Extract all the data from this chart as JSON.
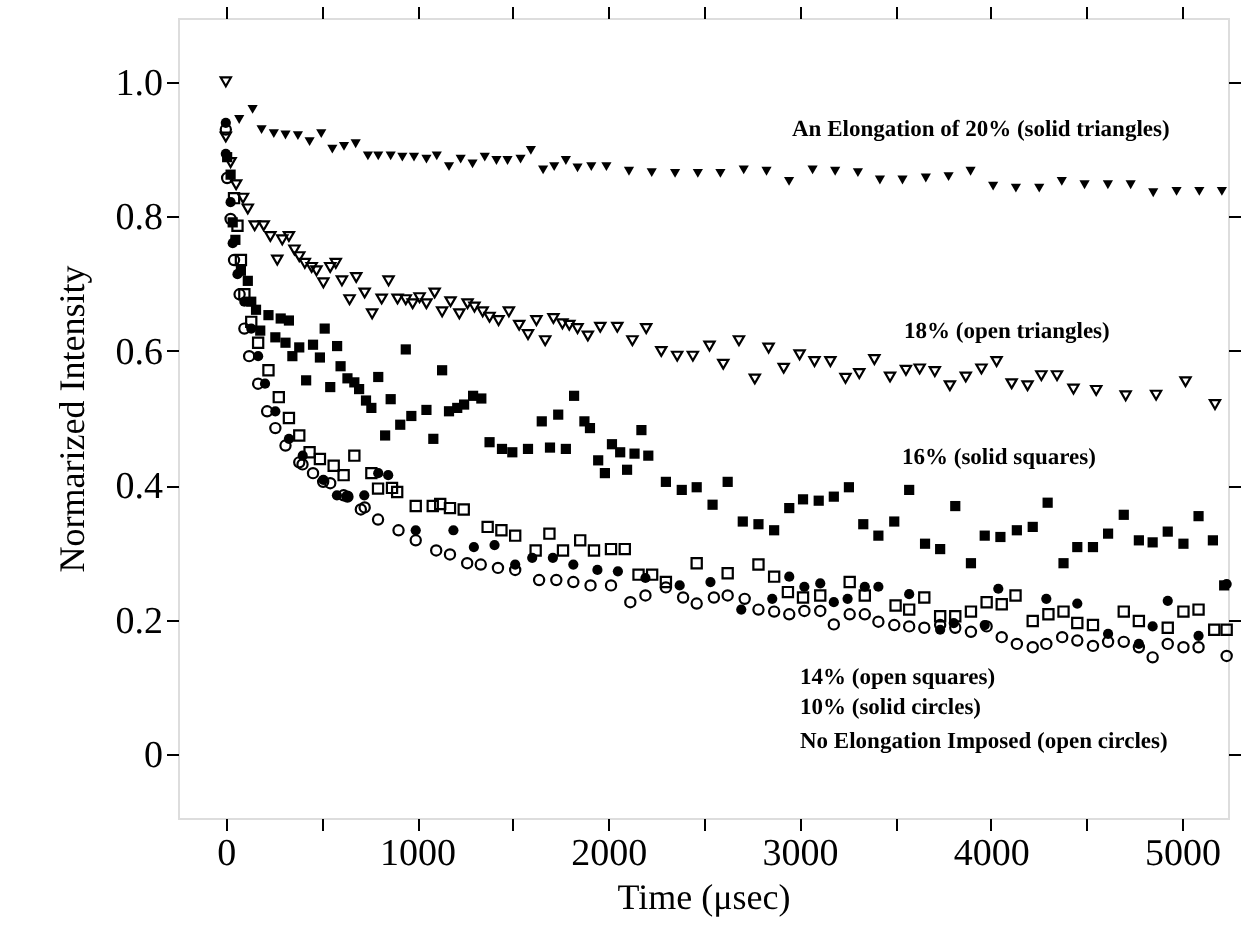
{
  "chart_data": {
    "type": "scatter",
    "xlabel": "Time  (μsec)",
    "ylabel": "Normarized  Intensity",
    "xlim": [
      -250,
      5240
    ],
    "ylim": [
      -0.095,
      1.095
    ],
    "xticks": [
      0,
      {
        "value": 500,
        "label": null
      },
      1000,
      {
        "value": 1500,
        "label": null
      },
      2000,
      {
        "value": 2500,
        "label": null
      },
      3000,
      {
        "value": 3500,
        "label": null
      },
      4000,
      {
        "value": 4500,
        "label": null
      },
      5000
    ],
    "yticks": [
      0,
      0.2,
      0.4,
      0.6,
      0.8,
      {
        "value": 1,
        "label": "1.0"
      }
    ],
    "grid": false,
    "annotations": [
      "An Elongation of 20% (solid triangles)",
      "18% (open triangles)",
      "16% (solid squares)",
      "14% (open squares)",
      "10% (solid circles)",
      "No Elongation Imposed (open circles)"
    ],
    "series": [
      {
        "color": "#000000",
        "marker": "triangle",
        "x": [
          70,
          140,
          187,
          251,
          312,
          377,
          438,
          499,
          557,
          618,
          679,
          743,
          797,
          862,
          923,
          984,
          1049,
          1103,
          1167,
          1228,
          1290,
          1354,
          1415,
          1473,
          1541,
          1595,
          1659,
          1717,
          1778,
          1839,
          1911,
          1990,
          2108,
          2227,
          2349,
          2468,
          2586,
          2708,
          2827,
          2945,
          3068,
          3186,
          3305,
          3420,
          3538,
          3660,
          3779,
          3894,
          4012,
          4131,
          4253,
          4371,
          4490,
          4612,
          4731,
          4849,
          4971,
          5090,
          5208
        ],
        "values": [
          0.944,
          0.959,
          0.929,
          0.923,
          0.921,
          0.92,
          0.911,
          0.923,
          0.9,
          0.904,
          0.908,
          0.89,
          0.89,
          0.89,
          0.888,
          0.888,
          0.885,
          0.89,
          0.874,
          0.885,
          0.878,
          0.888,
          0.883,
          0.883,
          0.885,
          0.898,
          0.869,
          0.874,
          0.883,
          0.872,
          0.874,
          0.874,
          0.867,
          0.865,
          0.864,
          0.864,
          0.864,
          0.869,
          0.867,
          0.852,
          0.869,
          0.867,
          0.865,
          0.854,
          0.854,
          0.857,
          0.859,
          0.867,
          0.845,
          0.842,
          0.842,
          0.852,
          0.847,
          0.847,
          0.847,
          0.835,
          0.837,
          0.837,
          0.837
        ]
      },
      {
        "color": "#000000",
        "marker": "triangle",
        "x": [
          0,
          0,
          25,
          54,
          90,
          115,
          151,
          198,
          233,
          269,
          295,
          330,
          359,
          384,
          413,
          449,
          474,
          510,
          546,
          575,
          607,
          647,
          682,
          726,
          765,
          815,
          851,
          898,
          941,
          977,
          1013,
          1049,
          1092,
          1131,
          1175,
          1221,
          1264,
          1300,
          1343,
          1379,
          1426,
          1480,
          1534,
          1580,
          1624,
          1670,
          1713,
          1760,
          1796,
          1839,
          1893,
          1958,
          2047,
          2126,
          2198,
          2277,
          2360,
          2442,
          2529,
          2601,
          2683,
          2766,
          2838,
          2917,
          3000,
          3078,
          3161,
          3240,
          3312,
          3391,
          3473,
          3556,
          3628,
          3707,
          3786,
          3869,
          3951,
          4030,
          4109,
          4192,
          4264,
          4346,
          4432,
          4551,
          4705,
          4864,
          5018,
          5172
        ],
        "values": [
          1.0,
          0.918,
          0.88,
          0.847,
          0.827,
          0.811,
          0.786,
          0.786,
          0.77,
          0.735,
          0.765,
          0.77,
          0.75,
          0.74,
          0.73,
          0.724,
          0.719,
          0.701,
          0.724,
          0.73,
          0.704,
          0.676,
          0.709,
          0.686,
          0.655,
          0.677,
          0.704,
          0.677,
          0.676,
          0.67,
          0.679,
          0.67,
          0.686,
          0.658,
          0.673,
          0.655,
          0.67,
          0.665,
          0.658,
          0.65,
          0.645,
          0.658,
          0.638,
          0.624,
          0.645,
          0.615,
          0.648,
          0.64,
          0.638,
          0.633,
          0.622,
          0.635,
          0.635,
          0.615,
          0.633,
          0.599,
          0.592,
          0.592,
          0.607,
          0.58,
          0.615,
          0.558,
          0.604,
          0.574,
          0.594,
          0.584,
          0.584,
          0.559,
          0.566,
          0.587,
          0.561,
          0.571,
          0.573,
          0.569,
          0.548,
          0.561,
          0.573,
          0.584,
          0.551,
          0.548,
          0.563,
          0.563,
          0.543,
          0.541,
          0.533,
          0.534,
          0.554,
          0.52
        ]
      },
      {
        "color": "#000000",
        "marker": "square",
        "x": [
          7,
          25,
          36,
          50,
          79,
          115,
          133,
          158,
          180,
          223,
          259,
          287,
          312,
          330,
          348,
          384,
          420,
          456,
          492,
          517,
          546,
          582,
          600,
          636,
          672,
          697,
          733,
          761,
          797,
          833,
          862,
          912,
          941,
          970,
          1049,
          1085,
          1131,
          1167,
          1210,
          1246,
          1293,
          1336,
          1379,
          1444,
          1498,
          1580,
          1652,
          1695,
          1738,
          1778,
          1821,
          1875,
          1904,
          1947,
          1982,
          2019,
          2062,
          2098,
          2137,
          2173,
          2209,
          2301,
          2384,
          2462,
          2545,
          2624,
          2703,
          2785,
          2867,
          2946,
          3018,
          3100,
          3179,
          3258,
          3333,
          3412,
          3495,
          3573,
          3656,
          3735,
          3814,
          3896,
          3968,
          4050,
          4136,
          4219,
          4297,
          4380,
          4452,
          4534,
          4613,
          4695,
          4774,
          4846,
          4925,
          5007,
          5086,
          5161,
          5220
        ],
        "values": [
          0.888,
          0.862,
          0.791,
          0.765,
          0.719,
          0.704,
          0.673,
          0.661,
          0.63,
          0.653,
          0.62,
          0.648,
          0.612,
          0.645,
          0.592,
          0.605,
          0.556,
          0.609,
          0.59,
          0.633,
          0.546,
          0.607,
          0.577,
          0.559,
          0.553,
          0.543,
          0.526,
          0.515,
          0.561,
          0.474,
          0.528,
          0.49,
          0.602,
          0.503,
          0.512,
          0.469,
          0.571,
          0.51,
          0.515,
          0.52,
          0.533,
          0.529,
          0.464,
          0.454,
          0.449,
          0.454,
          0.495,
          0.456,
          0.505,
          0.454,
          0.533,
          0.495,
          0.485,
          0.437,
          0.418,
          0.461,
          0.449,
          0.423,
          0.447,
          0.482,
          0.444,
          0.405,
          0.393,
          0.397,
          0.371,
          0.405,
          0.346,
          0.342,
          0.333,
          0.366,
          0.379,
          0.377,
          0.383,
          0.397,
          0.342,
          0.325,
          0.346,
          0.393,
          0.313,
          0.305,
          0.369,
          0.284,
          0.325,
          0.323,
          0.333,
          0.338,
          0.374,
          0.284,
          0.308,
          0.308,
          0.328,
          0.356,
          0.318,
          0.315,
          0.331,
          0.313,
          0.354,
          0.318,
          0.251
        ]
      },
      {
        "color": "#000000",
        "marker": "square",
        "x": [
          43,
          61,
          79,
          97,
          133,
          169,
          223,
          277,
          330,
          384,
          438,
          492,
          564,
          616,
          672,
          761,
          796,
          869,
          896,
          993,
          1082,
          1121,
          1172,
          1244,
          1369,
          1441,
          1513,
          1620,
          1692,
          1763,
          1853,
          1925,
          2014,
          2086,
          2158,
          2229,
          2301,
          2462,
          2624,
          2785,
          2867,
          2939,
          3018,
          3108,
          3262,
          3341,
          3502,
          3573,
          3652,
          3735,
          3814,
          3896,
          3978,
          4057,
          4129,
          4219,
          4301,
          4380,
          4452,
          4534,
          4695,
          4774,
          4925,
          5007,
          5086,
          5168,
          5233
        ],
        "values": [
          0.827,
          0.786,
          0.735,
          0.684,
          0.643,
          0.612,
          0.571,
          0.531,
          0.5,
          0.474,
          0.449,
          0.439,
          0.429,
          0.415,
          0.444,
          0.418,
          0.395,
          0.396,
          0.39,
          0.369,
          0.369,
          0.372,
          0.366,
          0.364,
          0.338,
          0.333,
          0.325,
          0.303,
          0.328,
          0.303,
          0.318,
          0.303,
          0.305,
          0.305,
          0.267,
          0.267,
          0.256,
          0.284,
          0.269,
          0.282,
          0.264,
          0.241,
          0.233,
          0.236,
          0.256,
          0.236,
          0.221,
          0.215,
          0.233,
          0.205,
          0.205,
          0.212,
          0.226,
          0.223,
          0.236,
          0.198,
          0.208,
          0.212,
          0.195,
          0.192,
          0.212,
          0.198,
          0.188,
          0.212,
          0.215,
          0.185,
          0.185
        ]
      },
      {
        "color": "#000000",
        "marker": "circle",
        "x": [
          0,
          0,
          25,
          36,
          61,
          97,
          133,
          169,
          205,
          259,
          330,
          402,
          510,
          581,
          636,
          724,
          797,
          849,
          993,
          1190,
          1297,
          1405,
          1513,
          1602,
          1710,
          1817,
          1943,
          2050,
          2194,
          2373,
          2534,
          2695,
          2857,
          2946,
          3025,
          3108,
          3179,
          3251,
          3341,
          3412,
          3573,
          3735,
          3806,
          3968,
          4039,
          4290,
          4452,
          4613,
          4774,
          4846,
          4925,
          5086,
          5233
        ],
        "values": [
          0.939,
          0.893,
          0.821,
          0.76,
          0.714,
          0.673,
          0.633,
          0.592,
          0.551,
          0.51,
          0.469,
          0.444,
          0.408,
          0.385,
          0.383,
          0.385,
          0.418,
          0.415,
          0.333,
          0.333,
          0.308,
          0.311,
          0.282,
          0.292,
          0.292,
          0.282,
          0.274,
          0.272,
          0.262,
          0.251,
          0.256,
          0.215,
          0.231,
          0.264,
          0.249,
          0.254,
          0.226,
          0.231,
          0.249,
          0.249,
          0.238,
          0.185,
          0.195,
          0.192,
          0.246,
          0.231,
          0.224,
          0.179,
          0.164,
          0.19,
          0.228,
          0.176,
          0.253
        ]
      },
      {
        "color": "#000000",
        "marker": "circle",
        "x": [
          0,
          7,
          25,
          43,
          72,
          97,
          122,
          169,
          216,
          259,
          312,
          384,
          401,
          456,
          509,
          546,
          616,
          636,
          706,
          726,
          796,
          903,
          993,
          1100,
          1172,
          1262,
          1333,
          1423,
          1513,
          1638,
          1728,
          1817,
          1907,
          2014,
          2115,
          2194,
          2301,
          2391,
          2462,
          2552,
          2624,
          2713,
          2785,
          2867,
          2946,
          3025,
          3108,
          3179,
          3262,
          3341,
          3412,
          3495,
          3573,
          3652,
          3735,
          3814,
          3896,
          3978,
          4057,
          4136,
          4219,
          4290,
          4373,
          4452,
          4534,
          4613,
          4695,
          4774,
          4846,
          4925,
          5007,
          5086,
          5233
        ],
        "values": [
          0.929,
          0.857,
          0.796,
          0.735,
          0.684,
          0.633,
          0.592,
          0.551,
          0.51,
          0.485,
          0.459,
          0.434,
          0.431,
          0.418,
          0.405,
          0.403,
          0.385,
          0.383,
          0.364,
          0.367,
          0.349,
          0.333,
          0.318,
          0.303,
          0.297,
          0.284,
          0.282,
          0.277,
          0.274,
          0.259,
          0.259,
          0.256,
          0.251,
          0.251,
          0.226,
          0.236,
          0.248,
          0.233,
          0.224,
          0.233,
          0.236,
          0.231,
          0.215,
          0.212,
          0.208,
          0.213,
          0.213,
          0.193,
          0.208,
          0.208,
          0.197,
          0.192,
          0.19,
          0.188,
          0.192,
          0.188,
          0.182,
          0.19,
          0.174,
          0.164,
          0.159,
          0.164,
          0.174,
          0.169,
          0.161,
          0.167,
          0.167,
          0.159,
          0.144,
          0.164,
          0.159,
          0.159,
          0.146
        ]
      }
    ]
  }
}
